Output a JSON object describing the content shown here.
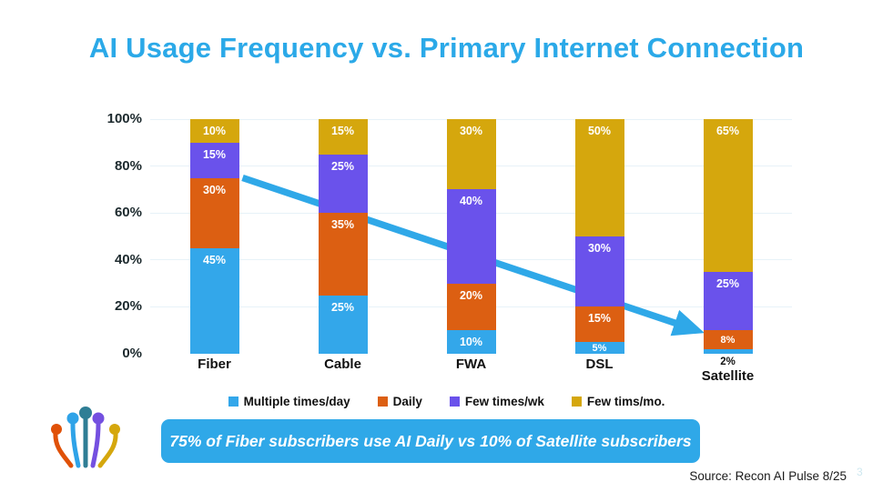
{
  "title": {
    "text": "AI Usage Frequency vs. Primary Internet Connection"
  },
  "colors": {
    "title_blue": "#2BA9E8",
    "accent_blue": "#2FA8E8",
    "series_blue": "#33A7EA",
    "series_orange": "#DC5F12",
    "series_purple": "#6A52EB",
    "series_gold": "#D5A70D"
  },
  "chart_data": {
    "type": "bar",
    "stacked": true,
    "unit": "%",
    "title": "AI Usage Frequency vs. Primary Internet Connection",
    "categories": [
      "Fiber",
      "Cable",
      "FWA",
      "DSL",
      "Satellite"
    ],
    "series": [
      {
        "name": "Multiple times/day",
        "color": "#33A7EA",
        "values": [
          45,
          25,
          10,
          5,
          2
        ]
      },
      {
        "name": "Daily",
        "color": "#DC5F12",
        "values": [
          30,
          35,
          20,
          15,
          8
        ]
      },
      {
        "name": "Few times/wk",
        "color": "#6A52EB",
        "values": [
          15,
          25,
          40,
          30,
          25
        ]
      },
      {
        "name": "Few tims/mo.",
        "color": "#D5A70D",
        "values": [
          10,
          15,
          30,
          50,
          65
        ]
      }
    ],
    "xlabel": "",
    "ylabel": "",
    "ylim": [
      0,
      100
    ],
    "yticks": [
      0,
      20,
      40,
      60,
      80,
      100
    ],
    "ytick_labels": [
      "0%",
      "20%",
      "40%",
      "60%",
      "80%",
      "100%"
    ],
    "grid": "faint horizontal lines at 20% intervals",
    "legend_position": "bottom",
    "bar_label_style": "white bold value% inside top of each segment; tiny segments labeled below axis",
    "annotation_arrow": {
      "from": {
        "category": "Fiber",
        "value": 75
      },
      "to": {
        "category": "Satellite",
        "value": 10
      },
      "color": "#2FA8E8"
    }
  },
  "callout": {
    "text": "75% of Fiber subscribers use AI Daily vs 10% of Satellite subscribers"
  },
  "source": {
    "text": "Source:  Recon AI Pulse 8/25"
  },
  "page_number": "3",
  "logo": {
    "name": "fiber-strands-logo",
    "strand_colors": [
      "#E05108",
      "#2FA3E8",
      "#2F7E95",
      "#7450E0",
      "#D5A70D"
    ]
  }
}
